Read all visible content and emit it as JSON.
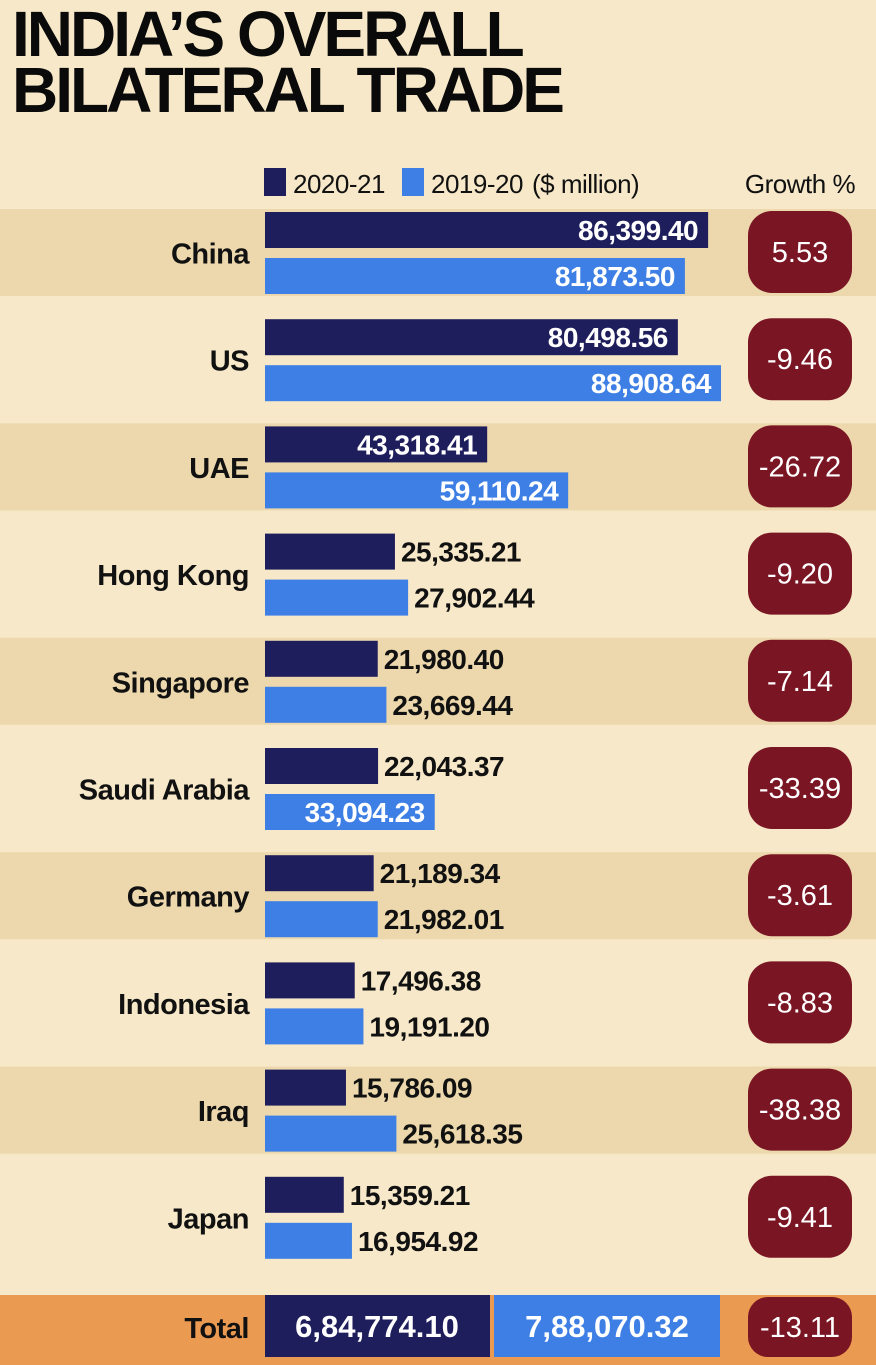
{
  "title_lines": [
    "INDIA’S OVERALL",
    "BILATERAL TRADE"
  ],
  "colors": {
    "background": "#f6e8c8",
    "band": "#ecd8ac",
    "series_2020_21": "#1f1e5c",
    "series_2019_20": "#3d7fe5",
    "growth_pill": "#7a1523",
    "total_row": "#eb9a52"
  },
  "chart_data": {
    "type": "bar",
    "orientation": "horizontal",
    "title": "INDIA’S OVERALL BILATERAL TRADE",
    "unit_label": "($ million)",
    "growth_header": "Growth %",
    "series": [
      {
        "name": "2020-21",
        "values": [
          86399.4,
          80498.56,
          43318.41,
          25335.21,
          21980.4,
          22043.37,
          21189.34,
          17496.38,
          15786.09,
          15359.21
        ],
        "labels": [
          "86,399.40",
          "80,498.56",
          "43,318.41",
          "25,335.21",
          "21,980.40",
          "22,043.37",
          "21,189.34",
          "17,496.38",
          "15,786.09",
          "15,359.21"
        ]
      },
      {
        "name": "2019-20",
        "values": [
          81873.5,
          88908.64,
          59110.24,
          27902.44,
          23669.44,
          33094.23,
          21982.01,
          19191.2,
          25618.35,
          16954.92
        ],
        "labels": [
          "81,873.50",
          "88,908.64",
          "59,110.24",
          "27,902.44",
          "23,669.44",
          "33,094.23",
          "21,982.01",
          "19,191.20",
          "25,618.35",
          "16,954.92"
        ]
      }
    ],
    "categories": [
      "China",
      "US",
      "UAE",
      "Hong Kong",
      "Singapore",
      "Saudi Arabia",
      "Germany",
      "Indonesia",
      "Iraq",
      "Japan"
    ],
    "growth": [
      "5.53",
      "-9.46",
      "-26.72",
      "-9.20",
      "-7.14",
      "-33.39",
      "-3.61",
      "-8.83",
      "-38.38",
      "-9.41"
    ],
    "xlim": [
      0,
      88908.64
    ],
    "total": {
      "label": "Total",
      "value_2020_21": "6,84,774.10",
      "value_2019_20": "7,88,070.32",
      "growth": "-13.11"
    }
  }
}
